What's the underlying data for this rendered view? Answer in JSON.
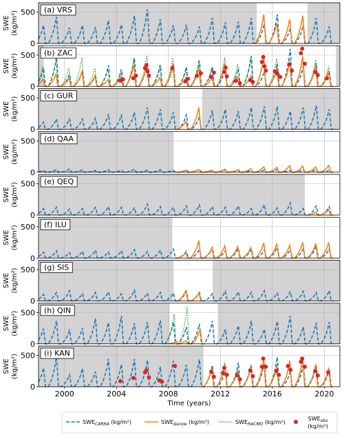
{
  "figure": {
    "xlabel": "Time (years)",
    "ylabel_top": "SWE",
    "ylabel_bottom": "(kg/m²)",
    "xlim": [
      1998.0,
      2021.2
    ],
    "ylim": [
      0,
      650
    ],
    "xticks": [
      2000,
      2004,
      2008,
      2012,
      2016,
      2020
    ],
    "yticks": [
      0,
      500
    ],
    "colors": {
      "carra": "#1f77b4",
      "dsnow": "#ff7f0e",
      "racmo": "#2ca02c",
      "obs": "#d62728",
      "shade": "#d3d3d3"
    }
  },
  "legend": [
    {
      "key": "carra",
      "main": "SWE",
      "sub": "CARRA",
      "unit": " (kg/m²)"
    },
    {
      "key": "dsnow",
      "main": "SWE",
      "sub": "Δsnow",
      "unit": " (kg/m²)"
    },
    {
      "key": "racmo",
      "main": "SWE",
      "sub": "RACMO",
      "unit": " (kg/m²)"
    },
    {
      "key": "obs",
      "main": "SWE",
      "sub": "obs",
      "unit": "(kg/m²)"
    }
  ],
  "chart_data": [
    {
      "panel": "(a) VRS",
      "type": "line",
      "carra_peak": [
        300,
        440,
        260,
        300,
        270,
        380,
        310,
        460,
        560,
        400,
        300,
        310,
        280,
        420,
        350,
        360,
        420,
        330,
        480,
        250,
        300,
        420,
        280
      ],
      "clear": [
        [
          2014.8,
          2018.7
        ]
      ],
      "dsnow": [
        [
          2015.3,
          480
        ],
        [
          2016.3,
          330
        ],
        [
          2017.3,
          400
        ],
        [
          2018.3,
          460
        ]
      ],
      "racmo": [],
      "obs": []
    },
    {
      "panel": "(b) ZAC",
      "type": "line",
      "carra_peak": [
        300,
        480,
        200,
        260,
        170,
        350,
        280,
        460,
        400,
        350,
        380,
        320,
        420,
        320,
        300,
        300,
        500,
        240,
        380,
        620,
        330,
        380,
        250
      ],
      "clear": [
        [
          1998.4,
          2020.9
        ]
      ],
      "dsnow": [
        [
          1998.3,
          120
        ],
        [
          1999.3,
          200
        ],
        [
          2000.3,
          130
        ],
        [
          2001.3,
          240
        ],
        [
          2002.3,
          170
        ],
        [
          2003.3,
          110
        ],
        [
          2004.3,
          160
        ],
        [
          2005.3,
          350
        ],
        [
          2006.3,
          360
        ],
        [
          2007.3,
          150
        ],
        [
          2008.3,
          370
        ],
        [
          2009.3,
          140
        ],
        [
          2010.3,
          300
        ],
        [
          2011.3,
          140
        ],
        [
          2012.3,
          380
        ],
        [
          2013.3,
          160
        ],
        [
          2014.3,
          170
        ],
        [
          2015.3,
          500
        ],
        [
          2016.3,
          290
        ],
        [
          2017.3,
          400
        ],
        [
          2018.3,
          480
        ],
        [
          2019.3,
          340
        ],
        [
          2020.3,
          260
        ]
      ],
      "racmo": [
        [
          1998.3,
          330
        ],
        [
          1999.3,
          440
        ],
        [
          2000.3,
          300
        ],
        [
          2001.3,
          480
        ],
        [
          2002.3,
          300
        ],
        [
          2003.3,
          270
        ],
        [
          2004.3,
          230
        ],
        [
          2005.3,
          470
        ],
        [
          2006.3,
          510
        ],
        [
          2007.3,
          360
        ],
        [
          2008.3,
          470
        ],
        [
          2009.3,
          260
        ],
        [
          2010.3,
          440
        ],
        [
          2011.3,
          310
        ],
        [
          2012.3,
          480
        ],
        [
          2013.3,
          370
        ],
        [
          2014.3,
          480
        ],
        [
          2015.3,
          470
        ],
        [
          2016.3,
          460
        ],
        [
          2017.3,
          430
        ],
        [
          2018.3,
          520
        ],
        [
          2019.3,
          440
        ],
        [
          2020.3,
          330
        ]
      ],
      "obs": [
        [
          2004.3,
          90
        ],
        [
          2004.5,
          110
        ],
        [
          2005.3,
          130
        ],
        [
          2005.5,
          170
        ],
        [
          2006.2,
          290
        ],
        [
          2006.3,
          340
        ],
        [
          2006.4,
          240
        ],
        [
          2006.5,
          170
        ],
        [
          2008.3,
          290
        ],
        [
          2009.3,
          80
        ],
        [
          2009.5,
          120
        ],
        [
          2010.2,
          170
        ],
        [
          2010.5,
          210
        ],
        [
          2011.3,
          150
        ],
        [
          2011.5,
          220
        ],
        [
          2012.3,
          230
        ],
        [
          2012.4,
          300
        ],
        [
          2012.5,
          160
        ],
        [
          2013.2,
          90
        ],
        [
          2013.5,
          50
        ],
        [
          2014.3,
          100
        ],
        [
          2014.5,
          70
        ],
        [
          2015.2,
          390
        ],
        [
          2015.3,
          470
        ],
        [
          2015.4,
          320
        ],
        [
          2015.5,
          250
        ],
        [
          2016.2,
          240
        ],
        [
          2016.4,
          200
        ],
        [
          2016.6,
          150
        ],
        [
          2017.3,
          350
        ],
        [
          2017.5,
          250
        ],
        [
          2018.2,
          530
        ],
        [
          2018.3,
          600
        ],
        [
          2018.5,
          360
        ],
        [
          2019.3,
          230
        ],
        [
          2019.5,
          180
        ],
        [
          2020.2,
          130
        ]
      ]
    },
    {
      "panel": "(c) GUR",
      "type": "line",
      "carra_peak": [
        120,
        170,
        170,
        170,
        180,
        250,
        230,
        280,
        360,
        330,
        280,
        240,
        200,
        310,
        330,
        300,
        360,
        380,
        380,
        300,
        360,
        390,
        330
      ],
      "clear": [
        [
          2008.9,
          2010.6
        ]
      ],
      "dsnow": [
        [
          2009.3,
          130
        ],
        [
          2010.3,
          360
        ]
      ],
      "racmo": [],
      "obs": []
    },
    {
      "panel": "(d) QAA",
      "type": "line",
      "carra_peak": [
        30,
        45,
        55,
        40,
        30,
        40,
        30,
        50,
        35,
        40,
        30,
        40,
        50,
        30,
        40,
        40,
        30,
        35,
        45,
        30,
        40,
        45,
        30
      ],
      "clear": [
        [
          2008.4,
          2021.2
        ]
      ],
      "dsnow": [
        [
          2009.3,
          30
        ],
        [
          2010.3,
          45
        ],
        [
          2011.3,
          35
        ],
        [
          2012.3,
          50
        ],
        [
          2013.3,
          40
        ],
        [
          2014.3,
          60
        ],
        [
          2015.3,
          90
        ],
        [
          2016.3,
          80
        ],
        [
          2017.3,
          110
        ],
        [
          2018.3,
          100
        ],
        [
          2019.3,
          90
        ],
        [
          2020.3,
          110
        ]
      ],
      "racmo": [],
      "obs": []
    },
    {
      "panel": "(e) QEQ",
      "type": "line",
      "carra_peak": [
        110,
        130,
        100,
        110,
        130,
        140,
        130,
        120,
        180,
        140,
        130,
        150,
        170,
        140,
        130,
        150,
        110,
        170,
        120,
        200,
        110,
        150,
        140
      ],
      "clear": [
        [
          2018.5,
          2021.2
        ]
      ],
      "dsnow": [
        [
          2019.3,
          50
        ],
        [
          2020.3,
          90
        ]
      ],
      "racmo": [],
      "obs": []
    },
    {
      "panel": "(f) ILU",
      "type": "line",
      "carra_peak": [
        100,
        120,
        90,
        110,
        130,
        100,
        120,
        140,
        110,
        130,
        150,
        110,
        140,
        170,
        120,
        160,
        150,
        130,
        180,
        140,
        150,
        200,
        150
      ],
      "clear": [
        [
          2008.3,
          2021.2
        ]
      ],
      "dsnow": [
        [
          2009.3,
          80
        ],
        [
          2010.3,
          290
        ],
        [
          2011.3,
          160
        ],
        [
          2012.3,
          200
        ],
        [
          2013.3,
          190
        ],
        [
          2014.3,
          170
        ],
        [
          2015.3,
          250
        ],
        [
          2016.3,
          230
        ],
        [
          2017.3,
          210
        ],
        [
          2018.3,
          260
        ],
        [
          2019.3,
          240
        ],
        [
          2020.3,
          260
        ]
      ],
      "racmo": [],
      "obs": []
    },
    {
      "panel": "(g) SIS",
      "type": "line",
      "carra_peak": [
        110,
        140,
        170,
        120,
        140,
        150,
        120,
        180,
        130,
        140,
        130,
        160,
        140,
        120,
        160,
        150,
        140,
        170,
        130,
        150,
        160,
        140,
        170
      ],
      "clear": [
        [
          2008.4,
          2011.4
        ]
      ],
      "dsnow": [
        [
          2009.3,
          170
        ],
        [
          2010.3,
          130
        ]
      ],
      "racmo": [],
      "obs": []
    },
    {
      "panel": "(h) QIN",
      "type": "line",
      "carra_peak": [
        250,
        380,
        220,
        260,
        420,
        350,
        460,
        340,
        360,
        390,
        360,
        280,
        330,
        380,
        240,
        300,
        380,
        240,
        370,
        460,
        280,
        350,
        360
      ],
      "clear": [
        [
          2008.1,
          2011.8
        ]
      ],
      "dsnow": [
        [
          2008.6,
          40
        ],
        [
          2009.3,
          50
        ],
        [
          2010.4,
          240
        ]
      ],
      "racmo": [
        [
          2008.4,
          490
        ],
        [
          2009.4,
          620
        ],
        [
          2010.4,
          260
        ]
      ],
      "obs": []
    },
    {
      "panel": "(i) KAN",
      "type": "line",
      "carra_peak": [
        310,
        490,
        200,
        300,
        250,
        460,
        370,
        460,
        440,
        330,
        430,
        360,
        450,
        350,
        260,
        400,
        350,
        400,
        490,
        250,
        360,
        360,
        280
      ],
      "clear": [
        [
          2010.7,
          2021.2
        ]
      ],
      "dsnow": [
        [
          2011.3,
          300
        ],
        [
          2012.3,
          370
        ],
        [
          2013.3,
          270
        ],
        [
          2014.3,
          320
        ],
        [
          2015.3,
          440
        ],
        [
          2016.3,
          330
        ],
        [
          2017.3,
          420
        ],
        [
          2018.3,
          460
        ],
        [
          2019.3,
          360
        ],
        [
          2020.3,
          300
        ]
      ],
      "racmo": [
        [
          2011.3,
          340
        ],
        [
          2012.3,
          400
        ],
        [
          2013.3,
          290
        ],
        [
          2014.3,
          370
        ],
        [
          2015.3,
          460
        ],
        [
          2016.3,
          370
        ],
        [
          2017.3,
          440
        ],
        [
          2018.3,
          490
        ],
        [
          2019.3,
          380
        ],
        [
          2020.3,
          320
        ]
      ],
      "obs": [
        [
          2004.3,
          90
        ],
        [
          2005.3,
          140
        ],
        [
          2006.2,
          230
        ],
        [
          2006.3,
          260
        ],
        [
          2006.5,
          150
        ],
        [
          2007.3,
          100
        ],
        [
          2007.5,
          80
        ],
        [
          2008.5,
          330
        ],
        [
          2011.3,
          240
        ],
        [
          2011.5,
          160
        ],
        [
          2012.2,
          220
        ],
        [
          2012.3,
          300
        ],
        [
          2012.5,
          190
        ],
        [
          2013.3,
          180
        ],
        [
          2013.5,
          120
        ],
        [
          2014.3,
          260
        ],
        [
          2014.5,
          170
        ],
        [
          2015.2,
          320
        ],
        [
          2015.3,
          450
        ],
        [
          2015.5,
          320
        ],
        [
          2016.3,
          250
        ],
        [
          2016.5,
          190
        ],
        [
          2017.2,
          330
        ],
        [
          2017.4,
          270
        ],
        [
          2018.2,
          400
        ],
        [
          2018.3,
          450
        ],
        [
          2018.5,
          320
        ],
        [
          2019.3,
          250
        ],
        [
          2019.5,
          180
        ],
        [
          2020.3,
          230
        ]
      ]
    }
  ]
}
